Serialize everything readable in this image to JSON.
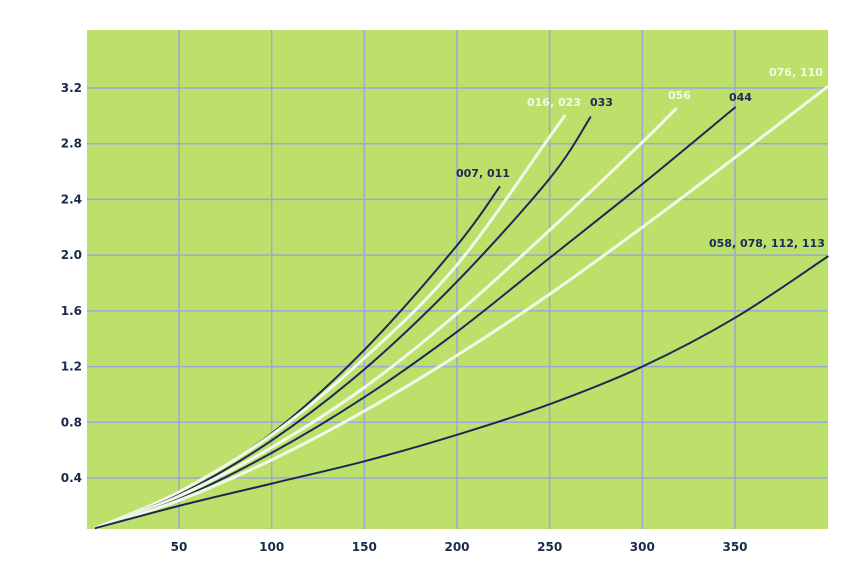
{
  "chart_data": {
    "type": "line",
    "title": "",
    "xlabel": "",
    "ylabel": "",
    "xlim": [
      5,
      400
    ],
    "ylim": [
      0.04,
      3.6
    ],
    "x_ticks": [
      50,
      100,
      150,
      200,
      250,
      300,
      350
    ],
    "y_ticks": [
      0.4,
      0.8,
      1.2,
      1.6,
      2.0,
      2.4,
      2.8,
      3.2
    ],
    "x_tick_labels": [
      "50",
      "100",
      "150",
      "200",
      "250",
      "300",
      "350"
    ],
    "y_tick_labels": [
      "0.4",
      "0.8",
      "1.2",
      "1.6",
      "2.0",
      "2.4",
      "2.8",
      "3.2"
    ],
    "grid": true,
    "colors": {
      "background": "#bde06b",
      "grid": "#9aa9d4",
      "dark": "#1b2a55",
      "light": "#f4f8e8"
    },
    "series": [
      {
        "name": "007, 011",
        "color": "#1b2a55",
        "x": [
          5,
          50,
          100,
          150,
          200,
          223
        ],
        "y": [
          0.04,
          0.3,
          0.72,
          1.32,
          2.07,
          2.49
        ]
      },
      {
        "name": "016, 023",
        "color": "#f4f8e8",
        "x": [
          5,
          50,
          100,
          150,
          200,
          250,
          258
        ],
        "y": [
          0.04,
          0.3,
          0.71,
          1.26,
          1.93,
          2.85,
          3.0
        ]
      },
      {
        "name": "033",
        "color": "#1b2a55",
        "x": [
          5,
          50,
          100,
          150,
          200,
          250,
          272
        ],
        "y": [
          0.04,
          0.28,
          0.67,
          1.18,
          1.81,
          2.55,
          2.99
        ]
      },
      {
        "name": "056",
        "color": "#f4f8e8",
        "x": [
          5,
          50,
          100,
          150,
          200,
          250,
          300,
          318
        ],
        "y": [
          0.04,
          0.27,
          0.62,
          1.05,
          1.58,
          2.18,
          2.81,
          3.05
        ]
      },
      {
        "name": "044",
        "color": "#1b2a55",
        "x": [
          5,
          50,
          100,
          150,
          200,
          250,
          300,
          350
        ],
        "y": [
          0.04,
          0.25,
          0.58,
          0.98,
          1.45,
          1.98,
          2.51,
          3.06
        ]
      },
      {
        "name": "076, 110",
        "color": "#f4f8e8",
        "x": [
          5,
          50,
          100,
          150,
          200,
          250,
          300,
          350,
          400
        ],
        "y": [
          0.04,
          0.24,
          0.53,
          0.88,
          1.28,
          1.72,
          2.2,
          2.7,
          3.21
        ]
      },
      {
        "name": "058, 078, 112, 113",
        "color": "#1b2a55",
        "x": [
          5,
          50,
          100,
          150,
          200,
          250,
          300,
          350,
          400
        ],
        "y": [
          0.04,
          0.2,
          0.36,
          0.52,
          0.71,
          0.93,
          1.2,
          1.55,
          1.99
        ]
      }
    ]
  }
}
